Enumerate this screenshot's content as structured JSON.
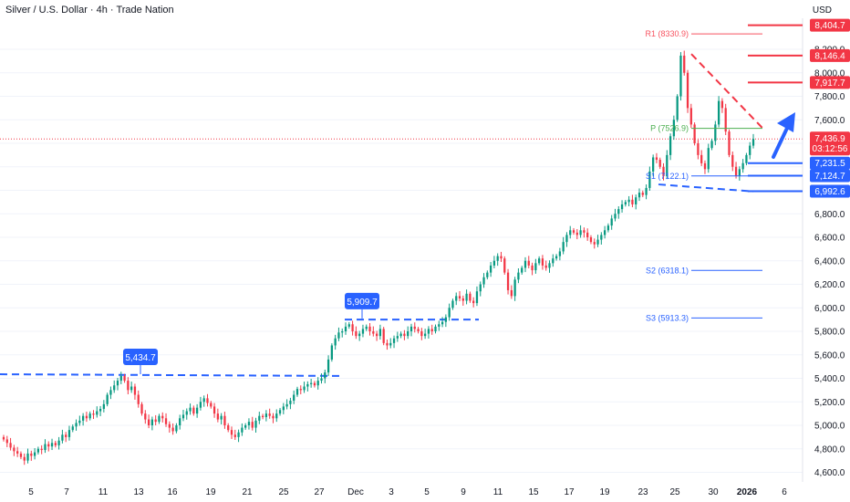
{
  "header": {
    "title": "Silver / U.S. Dollar · 4h · Trade Nation",
    "currency": "USD"
  },
  "colors": {
    "up": "#089981",
    "down": "#f23645",
    "blue": "#2962ff",
    "red": "#f23645",
    "pivot": "#4caf50"
  },
  "chart_data": {
    "type": "candlestick",
    "ylim": [
      4550,
      8500
    ],
    "y_ticks": [
      "4,600.0",
      "4,800.0",
      "5,000.0",
      "5,200.0",
      "5,400.0",
      "5,600.0",
      "5,800.0",
      "6,000.0",
      "6,200.0",
      "6,400.0",
      "6,600.0",
      "6,800.0",
      "7,000.0",
      "7,200.0",
      "7,400.0",
      "7,600.0",
      "7,800.0",
      "8,000.0",
      "8,200.0"
    ],
    "x_labels": [
      "5",
      "7",
      "11",
      "13",
      "16",
      "19",
      "21",
      "25",
      "27",
      "Dec",
      "3",
      "5",
      "9",
      "11",
      "15",
      "17",
      "19",
      "23",
      "25",
      "30",
      "2026",
      "6"
    ],
    "closes": [
      4880,
      4850,
      4810,
      4780,
      4760,
      4730,
      4700,
      4760,
      4740,
      4770,
      4800,
      4790,
      4840,
      4820,
      4850,
      4830,
      4870,
      4920,
      4900,
      4960,
      4990,
      5020,
      5040,
      5080,
      5060,
      5100,
      5090,
      5120,
      5140,
      5180,
      5260,
      5300,
      5340,
      5380,
      5420,
      5380,
      5300,
      5330,
      5260,
      5180,
      5100,
      5050,
      5000,
      5050,
      5030,
      5080,
      5060,
      5010,
      4980,
      4950,
      5000,
      5060,
      5090,
      5120,
      5150,
      5100,
      5150,
      5200,
      5230,
      5190,
      5160,
      5100,
      5050,
      5080,
      5000,
      4960,
      4920,
      4900,
      4940,
      4980,
      5000,
      5030,
      4980,
      5040,
      5080,
      5070,
      5100,
      5080,
      5060,
      5100,
      5130,
      5160,
      5180,
      5210,
      5260,
      5310,
      5300,
      5330,
      5350,
      5360,
      5340,
      5380,
      5400,
      5450,
      5560,
      5680,
      5740,
      5790,
      5800,
      5840,
      5860,
      5800,
      5760,
      5780,
      5820,
      5840,
      5800,
      5780,
      5760,
      5820,
      5700,
      5680,
      5700,
      5740,
      5760,
      5780,
      5760,
      5800,
      5840,
      5820,
      5800,
      5760,
      5780,
      5820,
      5800,
      5840,
      5860,
      5880,
      5920,
      6000,
      6060,
      6100,
      6080,
      6060,
      6120,
      6060,
      6040,
      6140,
      6200,
      6260,
      6300,
      6360,
      6400,
      6440,
      6420,
      6300,
      6150,
      6100,
      6240,
      6300,
      6340,
      6400,
      6360,
      6320,
      6380,
      6420,
      6360,
      6340,
      6380,
      6420,
      6440,
      6480,
      6560,
      6620,
      6660,
      6640,
      6620,
      6660,
      6640,
      6600,
      6560,
      6540,
      6580,
      6620,
      6660,
      6700,
      6760,
      6800,
      6840,
      6880,
      6900,
      6920,
      6880,
      6940,
      6980,
      6960,
      7020,
      7160,
      7280,
      7260,
      7200,
      7120,
      7300,
      7460,
      7600,
      7800,
      8146,
      8000,
      7700,
      7560,
      7400,
      7300,
      7230,
      7180,
      7360,
      7420,
      7560,
      7760,
      7700,
      7500,
      7300,
      7200,
      7124,
      7180,
      7231,
      7300,
      7380,
      7437
    ]
  },
  "levels": {
    "r1": "R1 (8330.9)",
    "p": "P (7526.9)",
    "s1": "S1 (7122.1)",
    "s2": "S2 (6318.1)",
    "s3": "S3 (5913.3)"
  },
  "price_tags": {
    "r_top": "8,404.7",
    "r_mid": "8,146.4",
    "r_low": "7,917.7",
    "current": "7,436.9",
    "countdown": "03:12:56",
    "s_top": "7,231.5",
    "s_mid": "7,124.7",
    "s_low": "6,992.6"
  },
  "annotations": {
    "high_nov": "5,434.7",
    "high_dec": "5,909.7"
  }
}
